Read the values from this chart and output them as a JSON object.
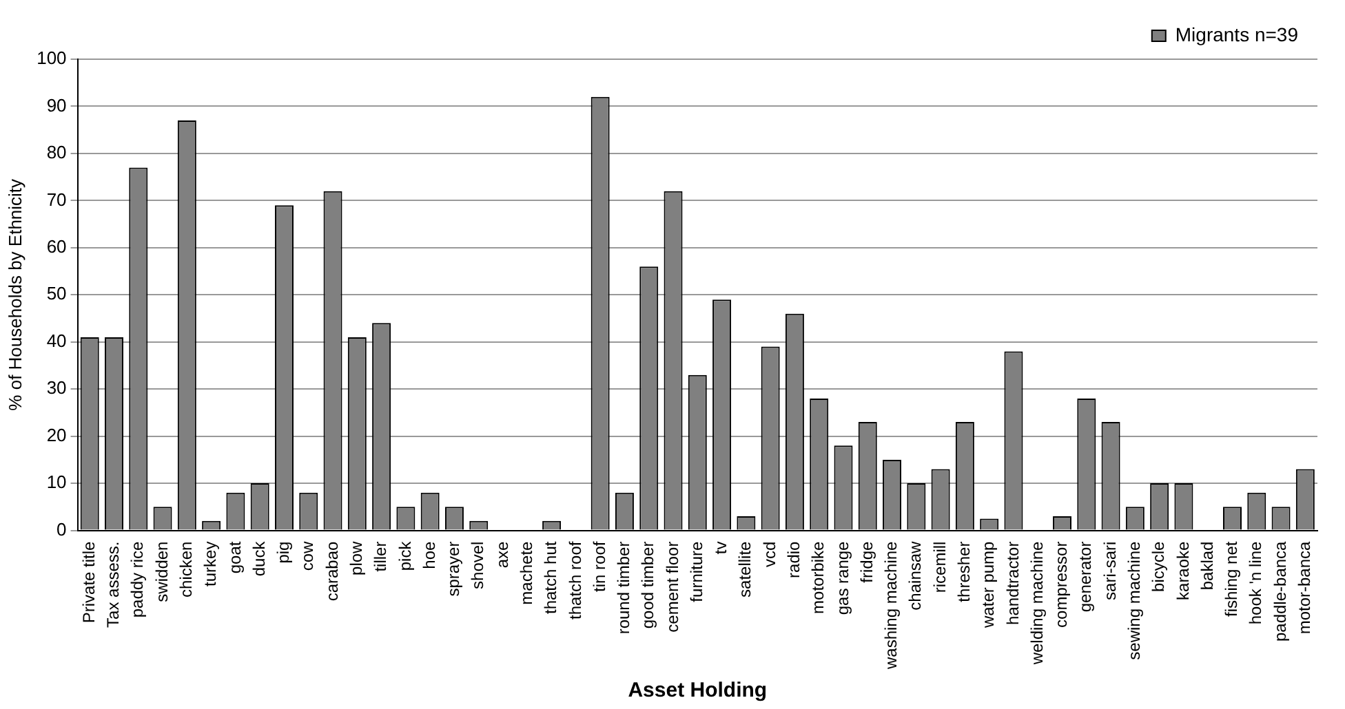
{
  "chart_data": {
    "type": "bar",
    "xlabel": "Asset Holding",
    "ylabel": "% of Households by Ethnicity",
    "categories": [
      "Private title",
      "Tax assess.",
      "paddy rice",
      "swidden",
      "chicken",
      "turkey",
      "goat",
      "duck",
      "pig",
      "cow",
      "carabao",
      "plow",
      "tiller",
      "pick",
      "hoe",
      "sprayer",
      "shovel",
      "axe",
      "machete",
      "thatch hut",
      "thatch roof",
      "tin roof",
      "round timber",
      "good timber",
      "cement floor",
      "furniture",
      "tv",
      "satellite",
      "vcd",
      "radio",
      "motorbike",
      "gas range",
      "fridge",
      "washing machine",
      "chainsaw",
      "ricemill",
      "thresher",
      "water pump",
      "handtractor",
      "welding machine",
      "compressor",
      "generator",
      "sari-sari",
      "sewing machine",
      "bicycle",
      "karaoke",
      "baklad",
      "fishing net",
      "hook 'n line",
      "paddle-banca",
      "motor-banca"
    ],
    "series": [
      {
        "name": "Migrants n=39",
        "color": "#808080",
        "values": [
          41,
          41,
          77,
          5,
          87,
          2,
          8,
          10,
          69,
          8,
          72,
          41,
          44,
          5,
          8,
          5,
          2,
          0,
          0,
          2,
          0,
          92,
          8,
          56,
          72,
          33,
          49,
          3,
          39,
          46,
          28,
          18,
          23,
          15,
          10,
          13,
          23,
          2.5,
          38,
          0,
          3,
          28,
          23,
          5,
          10,
          10,
          0,
          5,
          8,
          5,
          13
        ]
      }
    ],
    "ylim": [
      0,
      100
    ],
    "yticks": [
      0,
      10,
      20,
      30,
      40,
      50,
      60,
      70,
      80,
      90,
      100
    ],
    "grid": "y",
    "legend": "top right"
  }
}
